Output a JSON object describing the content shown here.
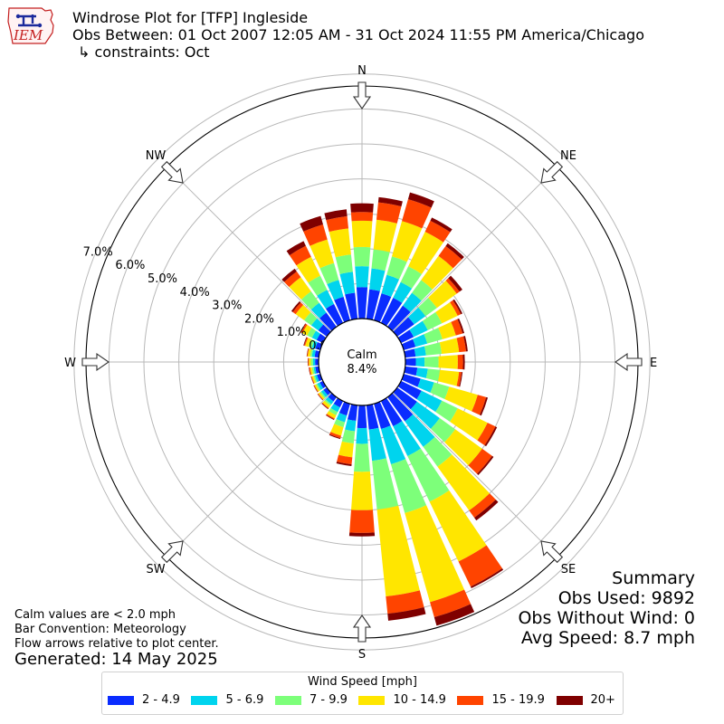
{
  "header": {
    "logo_text": "IEM",
    "title": "Windrose Plot for [TFP] Ingleside",
    "obs_period": "Obs Between: 01 Oct 2007 12:05 AM - 31 Oct 2024 11:55 PM America/Chicago",
    "constraints": "↳ constraints: Oct"
  },
  "summary": {
    "heading": "Summary",
    "obs_used": "Obs Used: 9892",
    "obs_without_wind": "Obs Without Wind: 0",
    "avg_speed": "Avg Speed: 8.7 mph"
  },
  "notes": {
    "calm_note": "Calm values are < 2.0 mph",
    "bar_convention": "Bar Convention: Meteorology",
    "flow_note": "Flow arrows relative to plot center.",
    "generated": "Generated: 14 May 2025"
  },
  "legend": {
    "title": "Wind Speed [mph]"
  },
  "chart_data": {
    "type": "windrose",
    "calm_label": "Calm",
    "calm_value": "8.4%",
    "compass_labels": [
      "N",
      "NE",
      "E",
      "SE",
      "S",
      "SW",
      "W",
      "NW"
    ],
    "radial_ticks": [
      "0.0%",
      "1.0%",
      "2.0%",
      "3.0%",
      "4.0%",
      "5.0%",
      "6.0%",
      "7.0%"
    ],
    "r_max_percent": 8.0,
    "direction_bin_width_deg": 10,
    "speed_bins": [
      {
        "label": "2 - 4.9",
        "color": "#0a2cff"
      },
      {
        "label": "5 - 6.9",
        "color": "#00d4ee"
      },
      {
        "label": "7 - 9.9",
        "color": "#7dff7a"
      },
      {
        "label": "10 - 14.9",
        "color": "#ffe600"
      },
      {
        "label": "15 - 19.9",
        "color": "#ff4400"
      },
      {
        "label": "20+",
        "color": "#7f0000"
      }
    ],
    "directions_deg": [
      0,
      10,
      20,
      30,
      40,
      50,
      60,
      70,
      80,
      90,
      100,
      110,
      120,
      130,
      140,
      150,
      160,
      170,
      180,
      190,
      200,
      210,
      220,
      230,
      240,
      250,
      260,
      270,
      280,
      290,
      300,
      310,
      320,
      330,
      340,
      350
    ],
    "cumulative_percent": [
      [
        0.9,
        1.5,
        2.05,
        2.8,
        3.05,
        3.3
      ],
      [
        0.85,
        1.45,
        2.0,
        2.85,
        3.35,
        3.5
      ],
      [
        0.8,
        1.35,
        1.9,
        2.95,
        3.6,
        3.8
      ],
      [
        0.8,
        1.3,
        1.8,
        2.9,
        3.25,
        3.35
      ],
      [
        0.75,
        1.2,
        1.65,
        2.5,
        2.85,
        2.95
      ],
      [
        0.6,
        1.0,
        1.4,
        2.1,
        2.2,
        2.3
      ],
      [
        0.4,
        0.85,
        1.3,
        1.8,
        1.9,
        1.95
      ],
      [
        0.35,
        0.7,
        1.15,
        1.55,
        1.75,
        1.8
      ],
      [
        0.3,
        0.6,
        1.05,
        1.55,
        1.75,
        1.8
      ],
      [
        0.3,
        0.55,
        0.95,
        1.5,
        1.65,
        1.7
      ],
      [
        0.35,
        0.65,
        1.0,
        1.55,
        1.62,
        1.65
      ],
      [
        0.5,
        0.9,
        1.35,
        2.2,
        2.45,
        2.5
      ],
      [
        0.65,
        1.3,
        1.8,
        2.75,
        3.0,
        3.05
      ],
      [
        0.7,
        1.5,
        2.05,
        3.0,
        3.35,
        3.4
      ],
      [
        0.85,
        1.75,
        2.45,
        4.0,
        4.25,
        4.35
      ],
      [
        0.8,
        1.75,
        3.2,
        5.1,
        5.9,
        5.95
      ],
      [
        0.75,
        1.8,
        3.25,
        5.9,
        6.35,
        6.6
      ],
      [
        0.7,
        1.6,
        3.0,
        5.5,
        6.0,
        6.2
      ],
      [
        0.65,
        1.1,
        1.9,
        3.0,
        3.65,
        3.75
      ],
      [
        0.45,
        0.75,
        1.1,
        1.5,
        1.7,
        1.75
      ],
      [
        0.35,
        0.55,
        0.7,
        0.95,
        1.02,
        1.05
      ],
      [
        0.2,
        0.35,
        0.45,
        0.55,
        0.58,
        0.6
      ],
      [
        0.15,
        0.25,
        0.3,
        0.38,
        0.4,
        0.42
      ],
      [
        0.12,
        0.2,
        0.25,
        0.3,
        0.32,
        0.33
      ],
      [
        0.1,
        0.18,
        0.22,
        0.27,
        0.29,
        0.3
      ],
      [
        0.1,
        0.16,
        0.2,
        0.25,
        0.27,
        0.28
      ],
      [
        0.1,
        0.15,
        0.2,
        0.25,
        0.28,
        0.29
      ],
      [
        0.1,
        0.16,
        0.22,
        0.28,
        0.3,
        0.31
      ],
      [
        0.12,
        0.2,
        0.25,
        0.32,
        0.34,
        0.35
      ],
      [
        0.15,
        0.25,
        0.35,
        0.45,
        0.48,
        0.5
      ],
      [
        0.2,
        0.35,
        0.5,
        0.65,
        0.7,
        0.72
      ],
      [
        0.3,
        0.55,
        0.8,
        1.1,
        1.2,
        1.25
      ],
      [
        0.5,
        0.85,
        1.25,
        1.75,
        1.95,
        2.05
      ],
      [
        0.6,
        1.05,
        1.5,
        2.1,
        2.45,
        2.6
      ],
      [
        0.7,
        1.2,
        1.7,
        2.4,
        2.85,
        3.1
      ],
      [
        0.75,
        1.35,
        1.85,
        2.6,
        2.95,
        3.15
      ]
    ]
  }
}
